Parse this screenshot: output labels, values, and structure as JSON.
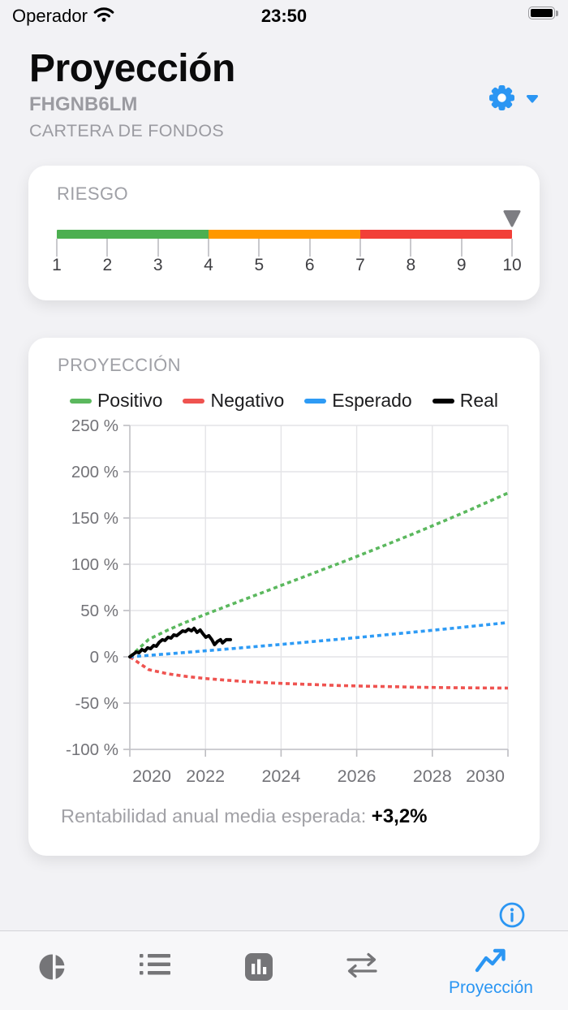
{
  "theme": {
    "accent": "#2b96f3",
    "icon_gray": "#757578",
    "risk_green": "#4caf50",
    "risk_orange": "#ff9800",
    "risk_red": "#f23f38"
  },
  "status_bar": {
    "carrier": "Operador",
    "time": "23:50",
    "battery": "full",
    "icons": [
      "wifi-icon",
      "battery-icon"
    ]
  },
  "header": {
    "title": "Proyección",
    "portfolio_id": "FHGNB6LM",
    "portfolio_type": "CARTERA DE FONDOS",
    "settings_icon": "gear-icon",
    "dropdown_icon": "chevron-down-icon"
  },
  "risk_card": {
    "label": "RIESGO",
    "scale": [
      "1",
      "2",
      "3",
      "4",
      "5",
      "6",
      "7",
      "8",
      "9",
      "10"
    ],
    "marker_position": 10,
    "marker_icon": "triangle-down-icon",
    "segments": [
      {
        "from": 1,
        "to": 4,
        "color": "#4caf50"
      },
      {
        "from": 4,
        "to": 7,
        "color": "#ff9800"
      },
      {
        "from": 7,
        "to": 10,
        "color": "#f23f38"
      }
    ]
  },
  "projection_card": {
    "label": "PROYECCIÓN",
    "caption": "Rentabilidad anual media esperada: ",
    "caption_value": "+3,2%"
  },
  "chart_data": {
    "type": "line",
    "x_base_year": 2020,
    "x_ticks": [
      2020,
      2022,
      2024,
      2026,
      2028,
      2030
    ],
    "xlim_offset_years": [
      0,
      10
    ],
    "y_ticks": [
      250,
      200,
      150,
      100,
      50,
      0,
      -50,
      -100
    ],
    "ylim": [
      -100,
      250
    ],
    "y_unit": "%",
    "grid": true,
    "legend_position": "top",
    "series": [
      {
        "name": "Positivo",
        "color": "#5bb85e",
        "style": "dashed",
        "x_start": 0,
        "x_step": 0.5,
        "values": [
          0,
          18.9,
          28.9,
          37.7,
          45.9,
          53.8,
          61.6,
          69.3,
          77.1,
          84.8,
          92.6,
          100.4,
          108.4,
          116.5,
          124.7,
          133.0,
          141.5,
          150.1,
          158.9,
          167.9,
          177.0
        ]
      },
      {
        "name": "Negativo",
        "color": "#ef5350",
        "style": "dashed",
        "x_start": 0,
        "x_step": 0.5,
        "values": [
          0,
          -13.9,
          -18.3,
          -21.2,
          -23.4,
          -25.1,
          -26.6,
          -27.7,
          -28.7,
          -29.5,
          -30.2,
          -31.0,
          -31.5,
          -31.9,
          -32.3,
          -32.8,
          -33.1,
          -33.3,
          -33.5,
          -33.7,
          -33.8
        ]
      },
      {
        "name": "Esperado",
        "color": "#2e9bf5",
        "style": "dashed",
        "x_start": 0,
        "x_step": 0.5,
        "values": [
          0,
          1.6,
          3.2,
          4.8,
          6.5,
          8.2,
          9.9,
          11.7,
          13.4,
          15.2,
          17.1,
          18.9,
          20.8,
          22.7,
          24.7,
          26.7,
          28.7,
          30.7,
          32.8,
          34.9,
          37.0
        ]
      },
      {
        "name": "Real",
        "color": "#000000",
        "style": "solid",
        "points": [
          [
            0,
            0
          ],
          [
            0.09,
            2.6
          ],
          [
            0.17,
            5.3
          ],
          [
            0.24,
            4.4
          ],
          [
            0.32,
            7.9
          ],
          [
            0.4,
            6.2
          ],
          [
            0.47,
            9.7
          ],
          [
            0.55,
            8.8
          ],
          [
            0.63,
            12.3
          ],
          [
            0.7,
            11.4
          ],
          [
            0.78,
            15.8
          ],
          [
            0.86,
            18.5
          ],
          [
            0.93,
            17.6
          ],
          [
            1.01,
            21.1
          ],
          [
            1.09,
            20.2
          ],
          [
            1.16,
            23.7
          ],
          [
            1.24,
            22.9
          ],
          [
            1.32,
            25.5
          ],
          [
            1.4,
            28.1
          ],
          [
            1.47,
            27.3
          ],
          [
            1.55,
            29.9
          ],
          [
            1.63,
            28.1
          ],
          [
            1.7,
            30.8
          ],
          [
            1.78,
            26.4
          ],
          [
            1.86,
            29.0
          ],
          [
            1.94,
            24.6
          ],
          [
            2.01,
            21.1
          ],
          [
            2.09,
            22.9
          ],
          [
            2.17,
            18.5
          ],
          [
            2.24,
            13.2
          ],
          [
            2.32,
            16.7
          ],
          [
            2.4,
            18.5
          ],
          [
            2.45,
            15.0
          ],
          [
            2.55,
            18.5
          ],
          [
            2.66,
            18.5
          ]
        ]
      }
    ],
    "annotation": {
      "text": "Rentabilidad anual media esperada:",
      "value": "+3,2%"
    }
  },
  "info_button": {
    "icon": "info-icon"
  },
  "tab_bar": {
    "tabs": [
      {
        "icon": "pie-chart-icon",
        "label": "",
        "active": false
      },
      {
        "icon": "list-icon",
        "label": "",
        "active": false
      },
      {
        "icon": "bar-chart-icon",
        "label": "",
        "active": false
      },
      {
        "icon": "swap-arrows-icon",
        "label": "",
        "active": false
      },
      {
        "icon": "trend-up-icon",
        "label": "Proyección",
        "active": true
      }
    ]
  }
}
